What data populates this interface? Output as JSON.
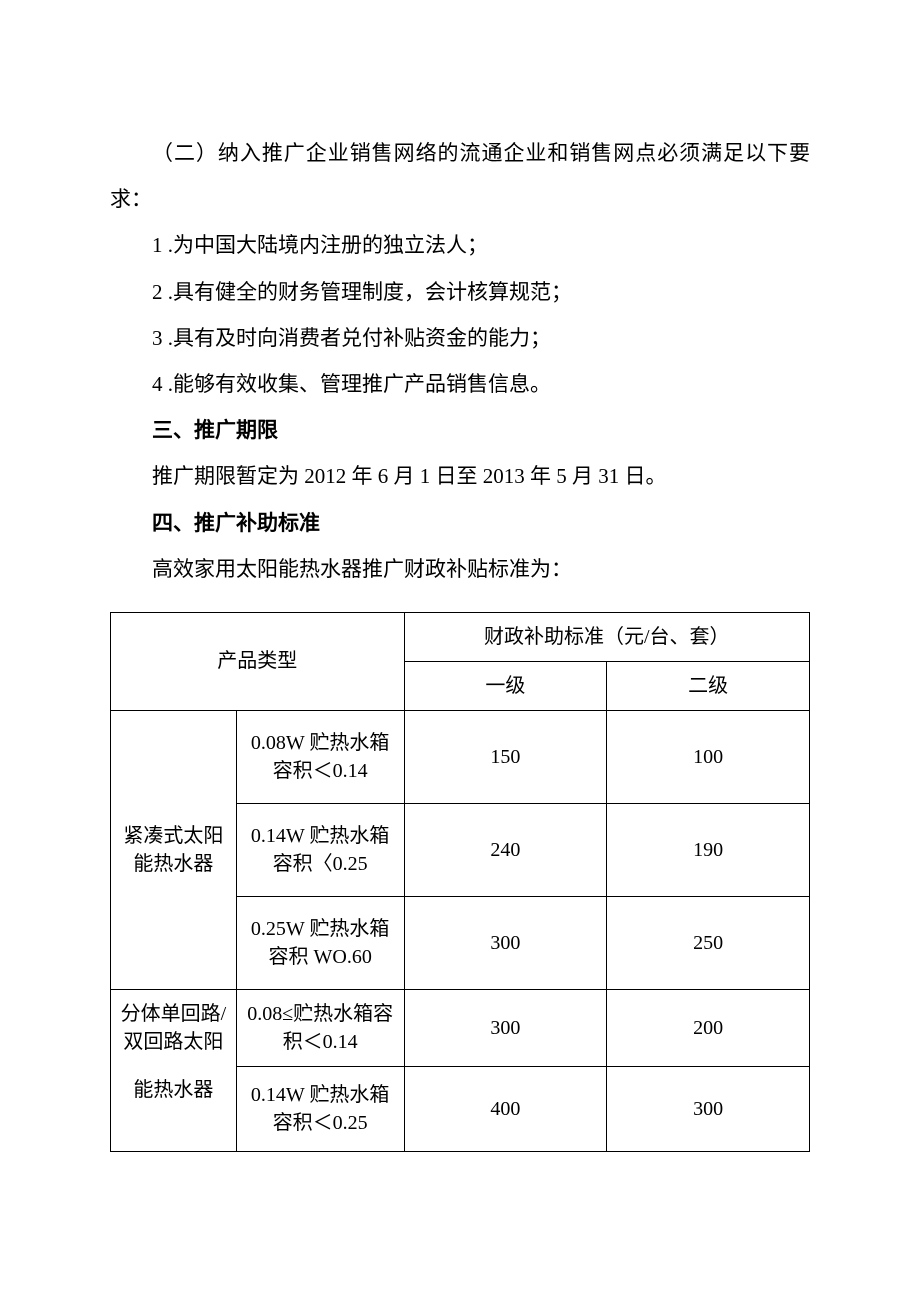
{
  "p1": "（二）纳入推广企业销售网络的流通企业和销售网点必须满足以下要求：",
  "list": {
    "i1": "1 .为中国大陆境内注册的独立法人；",
    "i2": "2 .具有健全的财务管理制度，会计核算规范；",
    "i3": "3 .具有及时向消费者兑付补贴资金的能力；",
    "i4": "4 .能够有效收集、管理推广产品销售信息。"
  },
  "h3": "三、推广期限",
  "p3": "推广期限暂定为 2012 年 6 月 1 日至 2013 年 5 月 31 日。",
  "h4": "四、推广补助标准",
  "p4": "高效家用太阳能热水器推广财政补贴标准为：",
  "table": {
    "header": {
      "type": "产品类型",
      "subsidy": "财政补助标准（元/台、套）",
      "lv1": "一级",
      "lv2": "二级"
    },
    "rows": [
      {
        "t1": "紧凑式太阳能热水器",
        "t2": "0.08W 贮热水箱容积＜0.14",
        "v1": "150",
        "v2": "100"
      },
      {
        "t1": "",
        "t2": "0.14W 贮热水箱容积〈0.25",
        "v1": "240",
        "v2": "190"
      },
      {
        "t1": "",
        "t2": "0.25W 贮热水箱容积 WO.60",
        "v1": "300",
        "v2": "250"
      },
      {
        "t1": "分体单回路/双回路太阳",
        "t2": "0.08≤贮热水箱容积＜0.14",
        "v1": "300",
        "v2": "200"
      },
      {
        "t1": "能热水器",
        "t2": "0.14W 贮热水箱容积＜0.25",
        "v1": "400",
        "v2": "300"
      }
    ]
  }
}
